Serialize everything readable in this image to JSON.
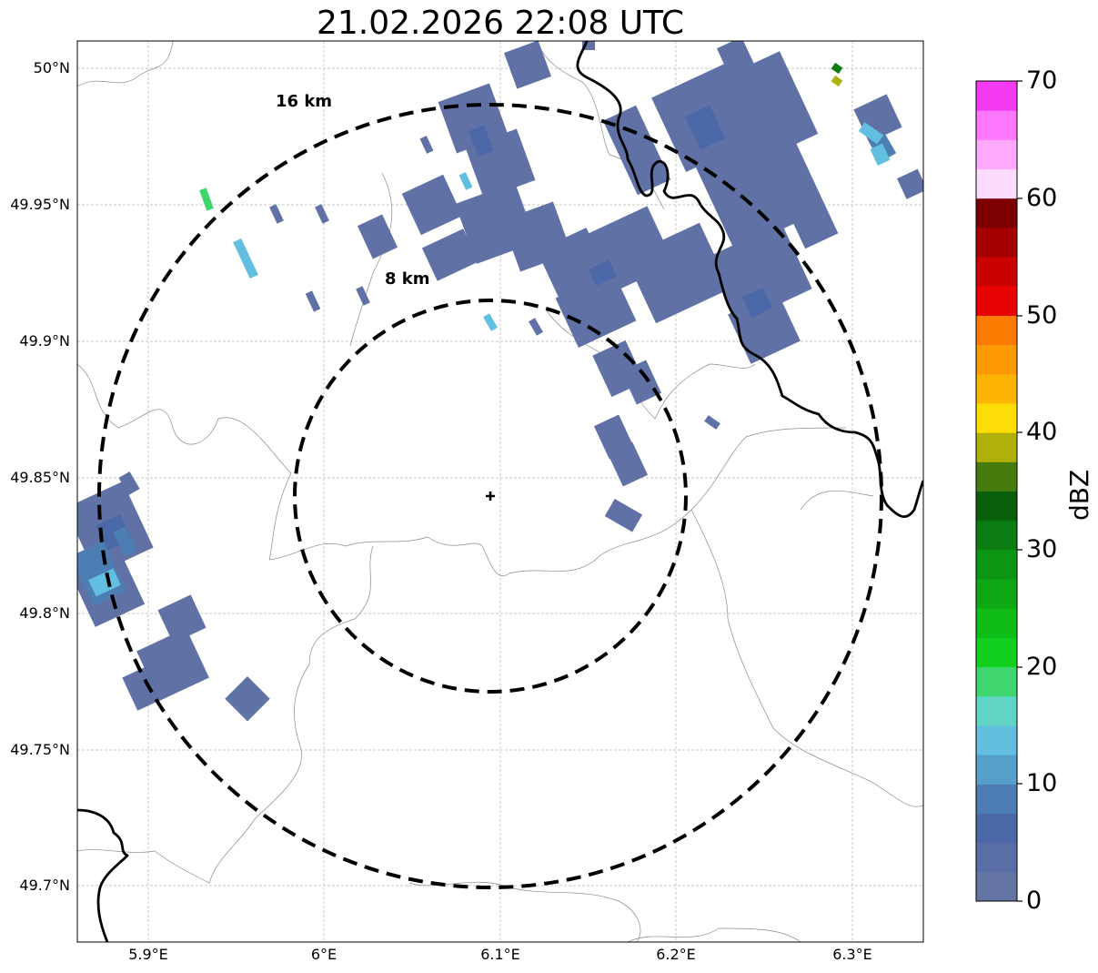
{
  "title": "21.02.2026 22:08 UTC",
  "map": {
    "lat_ticks": [
      "50°N",
      "49.95°N",
      "49.9°N",
      "49.85°N",
      "49.8°N",
      "49.75°N",
      "49.7°N"
    ],
    "lon_ticks": [
      "5.9°E",
      "6°E",
      "6.1°E",
      "6.2°E",
      "6.3°E"
    ],
    "range_rings": [
      {
        "label": "8 km",
        "radius_km": 8
      },
      {
        "label": "16 km",
        "radius_km": 16
      }
    ],
    "radar_site": {
      "lat": 49.843,
      "lon": 6.095
    },
    "extent": {
      "lon_min": 5.86,
      "lon_max": 6.34,
      "lat_min": 49.68,
      "lat_max": 50.01
    },
    "grid": true
  },
  "colorbar": {
    "label": "dBZ",
    "ticks": [
      "0",
      "10",
      "20",
      "30",
      "40",
      "50",
      "60",
      "70"
    ],
    "colors": [
      "#6475a4",
      "#596ea6",
      "#4b68a8",
      "#4c7eb3",
      "#569fcb",
      "#62bfdf",
      "#61d5c5",
      "#3fd66f",
      "#13cf1f",
      "#10bc17",
      "#0ea815",
      "#0c9413",
      "#0b7d12",
      "#075f0c",
      "#467a0b",
      "#afb00a",
      "#fedc06",
      "#fdb402",
      "#fd9a04",
      "#fd7b03",
      "#e70301",
      "#cb0100",
      "#a40000",
      "#7c0000",
      "#fddbfe",
      "#fdaafd",
      "#fd78fd",
      "#f43af2"
    ]
  }
}
